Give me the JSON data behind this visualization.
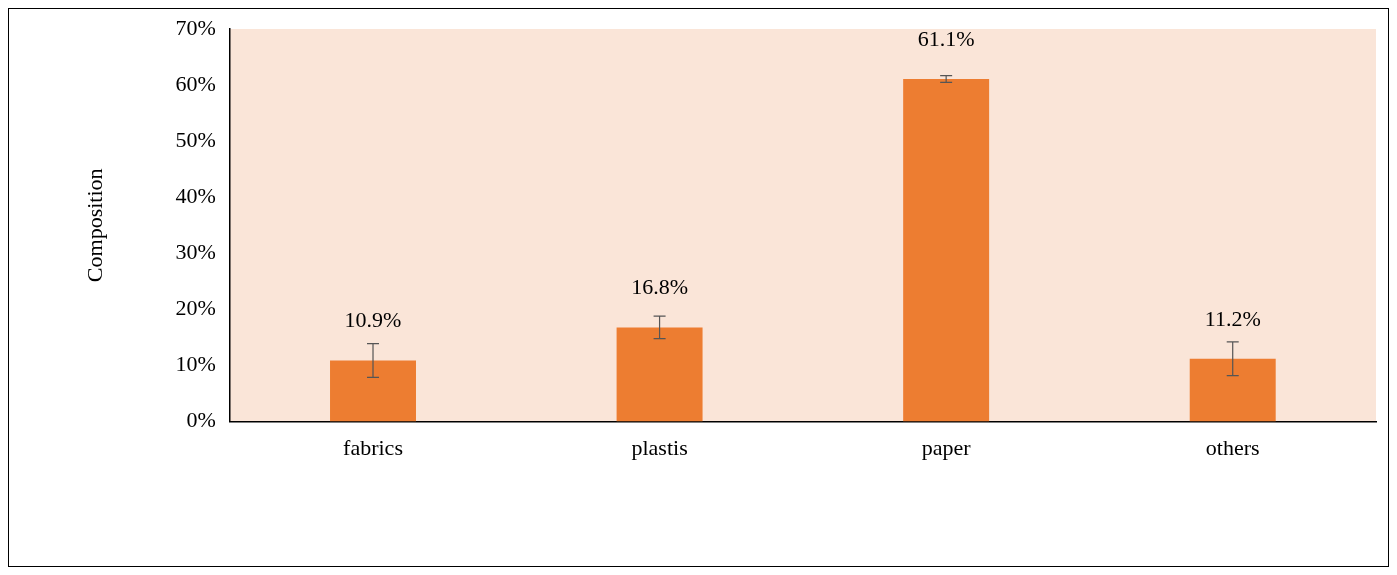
{
  "chart_data": {
    "type": "bar",
    "ylabel": "Composition",
    "categories": [
      "fabrics",
      "plastis",
      "paper",
      "others"
    ],
    "values": [
      10.9,
      16.8,
      61.1,
      11.2
    ],
    "errors": [
      3,
      2,
      0.6,
      3
    ],
    "value_labels": [
      "10.9%",
      "16.8%",
      "61.1%",
      "11.2%"
    ],
    "color": "#ed7d31",
    "ylim": [
      0,
      70
    ],
    "yticks": [
      {
        "value": 0,
        "label": "0%"
      },
      {
        "value": 10,
        "label": "10%"
      },
      {
        "value": 20,
        "label": "20%"
      },
      {
        "value": 30,
        "label": "30%"
      },
      {
        "value": 40,
        "label": "40%"
      },
      {
        "value": 50,
        "label": "50%"
      },
      {
        "value": 60,
        "label": "60%"
      },
      {
        "value": 70,
        "label": "70%"
      }
    ],
    "grid": false,
    "legend": false
  }
}
